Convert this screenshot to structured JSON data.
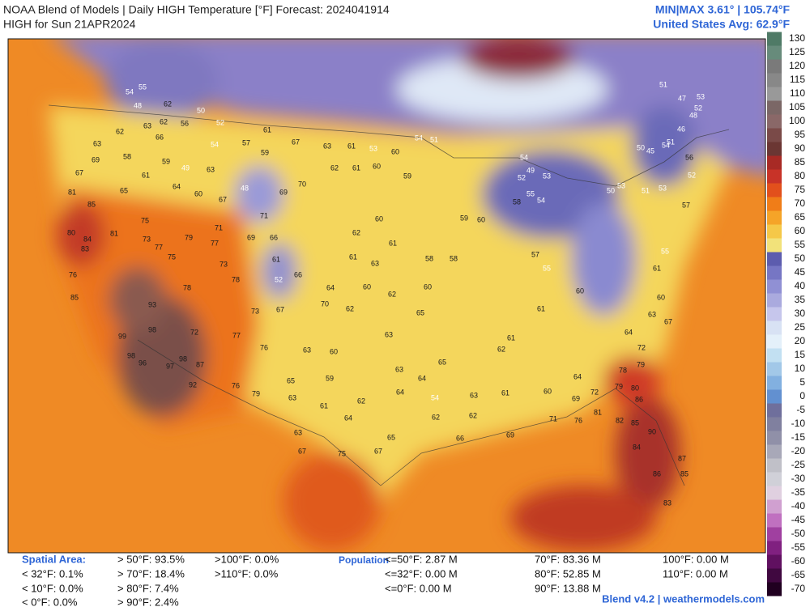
{
  "header": {
    "title": "NOAA Blend of Models | Daily HIGH Temperature [°F] Forecast: 2024041914",
    "subtitle": "HIGH for Sun 21APR2024",
    "minmax": "MIN|MAX 3.61° | 105.74°F",
    "average": "United States Avg: 62.9°F"
  },
  "colorbar": {
    "ticks": [
      130,
      125,
      120,
      115,
      110,
      105,
      100,
      95,
      90,
      85,
      80,
      75,
      70,
      65,
      60,
      55,
      50,
      45,
      40,
      35,
      30,
      25,
      20,
      15,
      10,
      5,
      0,
      -5,
      -10,
      -15,
      -20,
      -25,
      -30,
      -35,
      -40,
      -45,
      -50,
      -55,
      -60,
      -65,
      -70
    ],
    "colors": [
      "#4f7a66",
      "#678b7b",
      "#7a7a7a",
      "#888888",
      "#999999",
      "#7b6766",
      "#8a6868",
      "#7a4a48",
      "#6b3633",
      "#a82a25",
      "#c83328",
      "#e2501c",
      "#f07d18",
      "#f5a428",
      "#f5c848",
      "#f2e27a",
      "#5c5cae",
      "#7676c4",
      "#9090d4",
      "#aaaade",
      "#c6c6ec",
      "#d8e2f4",
      "#e4f0fa",
      "#c2e0f2",
      "#a2c8e8",
      "#82b0e0",
      "#6290d0",
      "#6f6f9c",
      "#80809f",
      "#9090a8",
      "#a8a8b8",
      "#c0c0c8",
      "#d0d0d8",
      "#e0d0e0",
      "#d0a0d0",
      "#c070c0",
      "#a040a0",
      "#802080",
      "#601060",
      "#400840",
      "#200020"
    ]
  },
  "stations": [
    55,
    54,
    48,
    62,
    63,
    62,
    56,
    50,
    52,
    61,
    62,
    66,
    58,
    63,
    69,
    67,
    61,
    59,
    49,
    63,
    54,
    57,
    59,
    67,
    63,
    61,
    53,
    60,
    54,
    51,
    81,
    85,
    65,
    64,
    60,
    67,
    48,
    69,
    70,
    62,
    61,
    60,
    59,
    80,
    84,
    83,
    81,
    75,
    73,
    77,
    75,
    79,
    77,
    71,
    73,
    71,
    69,
    66,
    61,
    52,
    66,
    76,
    85,
    78,
    78,
    73,
    67,
    70,
    64,
    93,
    98,
    99,
    98,
    72,
    77,
    76,
    63,
    60,
    96,
    97,
    98,
    87,
    92,
    76,
    79,
    63,
    65,
    59,
    62,
    64,
    60,
    62,
    61,
    60,
    62,
    63,
    61,
    58,
    60,
    62,
    65,
    63,
    63,
    64,
    65,
    67,
    61,
    63,
    67,
    75,
    64,
    54,
    62,
    63,
    66,
    62,
    61,
    69,
    71,
    76,
    81,
    82,
    85,
    90,
    84,
    87,
    85,
    86,
    83,
    72,
    79,
    80,
    86,
    79,
    78,
    72,
    64,
    63,
    67,
    60,
    61,
    55,
    53,
    50,
    53,
    51,
    52,
    57,
    56,
    50,
    45,
    54,
    51,
    46,
    48,
    52,
    47,
    51,
    53,
    54,
    52,
    53,
    49,
    55,
    58,
    54,
    60,
    59,
    58,
    57,
    55,
    60,
    61,
    61,
    62,
    64,
    60,
    69,
    65
  ],
  "footer": {
    "spatial_label": "Spatial Area:",
    "spatial": [
      "> 50°F: 93.5%",
      "< 32°F: 0.1%",
      "< 10°F: 0.0%",
      "< 0°F: 0.0%",
      "> 70°F: 18.4%",
      "> 80°F: 7.4%",
      "> 90°F: 2.4%",
      ">100°F: 0.0%",
      ">110°F: 0.0%"
    ],
    "population_label": "Population",
    "population": [
      "<=50°F: 2.87 M",
      "<=32°F: 0.00 M",
      "<=0°F: 0.00 M",
      "70°F: 83.36 M",
      "80°F: 52.85 M",
      "90°F: 13.88 M",
      "100°F: 0.00 M",
      "110°F: 0.00 M"
    ],
    "credit": "Blend v4.2 | weathermodels.com"
  }
}
